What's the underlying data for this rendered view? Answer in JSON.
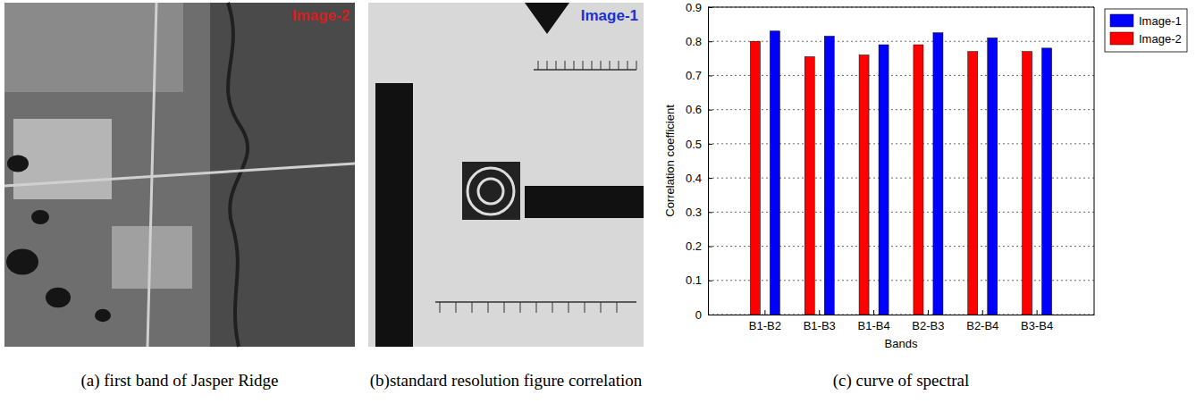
{
  "images": [
    {
      "label": "Image-2",
      "color": "#d42020"
    },
    {
      "label": "Image-1",
      "color": "#2030d0"
    }
  ],
  "captions": [
    "(a) first band of Jasper Ridge",
    "(b)standard resolution figure correlation",
    "(c) curve of spectral"
  ],
  "chart_data": {
    "type": "bar",
    "x_label": "Bands",
    "y_label": "Correlation coefficient",
    "categories": [
      "B1-B2",
      "B1-B3",
      "B1-B4",
      "B2-B3",
      "B2-B4",
      "B3-B4"
    ],
    "series": [
      {
        "name": "Image-1",
        "color": "#0000ff",
        "values": [
          0.83,
          0.815,
          0.79,
          0.825,
          0.81,
          0.78
        ]
      },
      {
        "name": "Image-2",
        "color": "#ff0000",
        "values": [
          0.8,
          0.755,
          0.76,
          0.79,
          0.77,
          0.77
        ]
      }
    ],
    "ylim": [
      0,
      0.9
    ],
    "yticks": [
      0,
      0.1,
      0.2,
      0.3,
      0.4,
      0.5,
      0.6,
      0.7,
      0.8,
      0.9
    ],
    "grid": true,
    "legend": "right"
  }
}
